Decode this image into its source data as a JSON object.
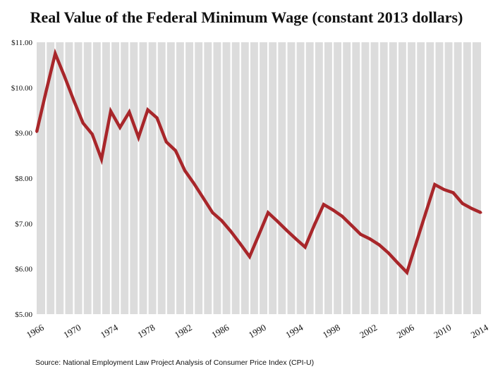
{
  "chart_data": {
    "type": "line",
    "title": "Real Value of the Federal Minimum Wage (constant 2013 dollars)",
    "xlabel": "",
    "ylabel": "",
    "x": [
      1966,
      1967,
      1968,
      1969,
      1970,
      1971,
      1972,
      1973,
      1974,
      1975,
      1976,
      1977,
      1978,
      1979,
      1980,
      1981,
      1982,
      1983,
      1984,
      1985,
      1986,
      1987,
      1988,
      1989,
      1990,
      1991,
      1992,
      1993,
      1994,
      1995,
      1996,
      1997,
      1998,
      1999,
      2000,
      2001,
      2002,
      2003,
      2004,
      2005,
      2006,
      2007,
      2008,
      2009,
      2010,
      2011,
      2012,
      2013,
      2014
    ],
    "xlim": [
      1966,
      2014
    ],
    "ylim": [
      5,
      11
    ],
    "x_ticks": [
      1966,
      1970,
      1974,
      1978,
      1982,
      1986,
      1990,
      1994,
      1998,
      2002,
      2006,
      2010,
      2014
    ],
    "y_ticks": [
      "$5.00",
      "$6.00",
      "$7.00",
      "$8.00",
      "$9.00",
      "$10.00",
      "$11.00"
    ],
    "y_tick_values": [
      5,
      6,
      7,
      8,
      9,
      10,
      11
    ],
    "grid": "vertical",
    "colors": {
      "line": "#a8262a",
      "plot_bg": "#dcdcdc",
      "grid": "#ffffff"
    },
    "series": [
      {
        "values": [
          9.02,
          9.9,
          10.75,
          10.25,
          9.72,
          9.22,
          8.97,
          8.42,
          9.48,
          9.12,
          9.46,
          8.9,
          9.51,
          9.33,
          8.8,
          8.61,
          8.17,
          7.88,
          7.56,
          7.24,
          7.06,
          6.82,
          6.55,
          6.27,
          6.75,
          7.24,
          7.05,
          6.85,
          6.66,
          6.48,
          6.97,
          7.42,
          7.3,
          7.16,
          6.96,
          6.76,
          6.66,
          6.53,
          6.35,
          6.13,
          5.92,
          6.57,
          7.22,
          7.86,
          7.75,
          7.68,
          7.44,
          7.33,
          7.24
        ]
      }
    ]
  },
  "source_note": "Source: National Employment Law Project Analysis of Consumer Price Index (CPI-U)"
}
